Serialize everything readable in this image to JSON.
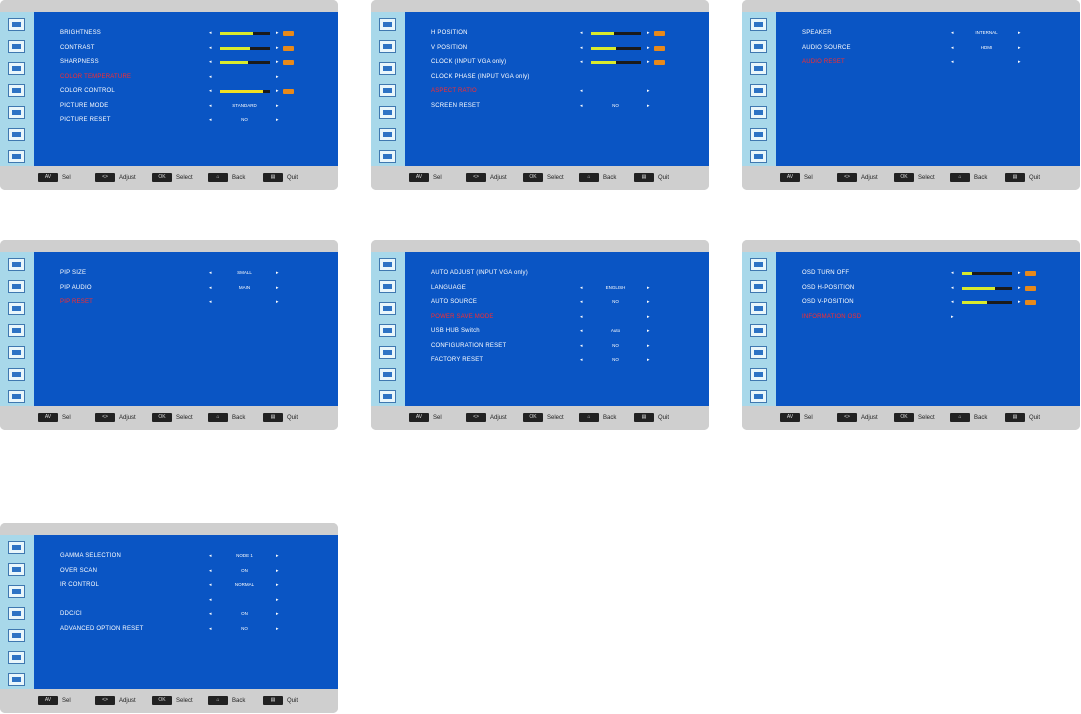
{
  "legend": [
    {
      "key": "AV",
      "label": "Sel"
    },
    {
      "key": "<>",
      "label": "Adjust"
    },
    {
      "key": "OK",
      "label": "Select"
    },
    {
      "key": "⌂",
      "label": "Back"
    },
    {
      "key": "▤",
      "label": "Quit"
    }
  ],
  "panels": [
    {
      "name": "picture",
      "rows": [
        {
          "label": "BRIGHTNESS",
          "type": "slider",
          "level": 0.65
        },
        {
          "label": "CONTRAST",
          "type": "slider",
          "level": 0.6
        },
        {
          "label": "SHARPNESS",
          "type": "slider",
          "level": 0.55
        },
        {
          "label": "COLOR TEMPERATURE",
          "type": "value",
          "value": "",
          "selected": true
        },
        {
          "label": "COLOR CONTROL",
          "type": "slider",
          "level": 0.85,
          "fill": "yellow"
        },
        {
          "label": "PICTURE MODE",
          "type": "value",
          "value": "STANDARD"
        },
        {
          "label": "PICTURE RESET",
          "type": "value",
          "value": "NO"
        }
      ]
    },
    {
      "name": "screen",
      "rows": [
        {
          "label": "H POSITION",
          "type": "slider",
          "level": 0.45
        },
        {
          "label": "V POSITION",
          "type": "slider",
          "level": 0.5
        },
        {
          "label": "CLOCK (INPUT VGA only)",
          "type": "slider",
          "level": 0.5
        },
        {
          "label": "CLOCK PHASE (INPUT VGA only)",
          "type": "none"
        },
        {
          "label": "ASPECT RATIO",
          "type": "value",
          "value": "",
          "selected": true
        },
        {
          "label": "SCREEN RESET",
          "type": "value",
          "value": "NO"
        }
      ]
    },
    {
      "name": "audio",
      "rows": [
        {
          "label": "SPEAKER",
          "type": "value",
          "value": "INTERNAL"
        },
        {
          "label": "AUDIO SOURCE",
          "type": "value",
          "value": "HDMI"
        },
        {
          "label": "AUDIO RESET",
          "type": "value",
          "value": "",
          "selected": true
        }
      ]
    },
    {
      "name": "pip",
      "rows": [
        {
          "label": "PIP SIZE",
          "type": "value",
          "value": "SMALL"
        },
        {
          "label": "PIP AUDIO",
          "type": "value",
          "value": "MAIN"
        },
        {
          "label": "PIP RESET",
          "type": "value",
          "value": "",
          "selected": true
        }
      ]
    },
    {
      "name": "configuration",
      "rows": [
        {
          "label": "AUTO ADJUST (INPUT VGA only)",
          "type": "none"
        },
        {
          "label": "LANGUAGE",
          "type": "value",
          "value": "ENGLISH"
        },
        {
          "label": "AUTO SOURCE",
          "type": "value",
          "value": "NO"
        },
        {
          "label": "POWER SAVE MODE",
          "type": "value",
          "value": "",
          "selected": true
        },
        {
          "label": "USB HUB Switch",
          "type": "value",
          "value": "Auto"
        },
        {
          "label": "CONFIGURATION RESET",
          "type": "value",
          "value": "NO"
        },
        {
          "label": "FACTORY RESET",
          "type": "value",
          "value": "NO"
        }
      ]
    },
    {
      "name": "osd",
      "rows": [
        {
          "label": "OSD TURN OFF",
          "type": "slider",
          "level": 0.2
        },
        {
          "label": "OSD H-POSITION",
          "type": "slider",
          "level": 0.65
        },
        {
          "label": "OSD V-POSITION",
          "type": "slider",
          "level": 0.5
        },
        {
          "label": "INFORMATION OSD",
          "type": "arrow",
          "selected": true
        }
      ]
    },
    {
      "name": "advanced",
      "rows": [
        {
          "label": "GAMMA SELECTION",
          "type": "value",
          "value": "NODE 1"
        },
        {
          "label": "OVER SCAN",
          "type": "value",
          "value": "ON"
        },
        {
          "label": "IR CONTROL",
          "type": "value",
          "value": "NORMAL"
        },
        {
          "label": "",
          "type": "value",
          "value": "",
          "selected": true
        },
        {
          "label": "DDC/CI",
          "type": "value",
          "value": "ON"
        },
        {
          "label": "ADVANCED OPTION RESET",
          "type": "value",
          "value": "NO"
        }
      ]
    }
  ]
}
